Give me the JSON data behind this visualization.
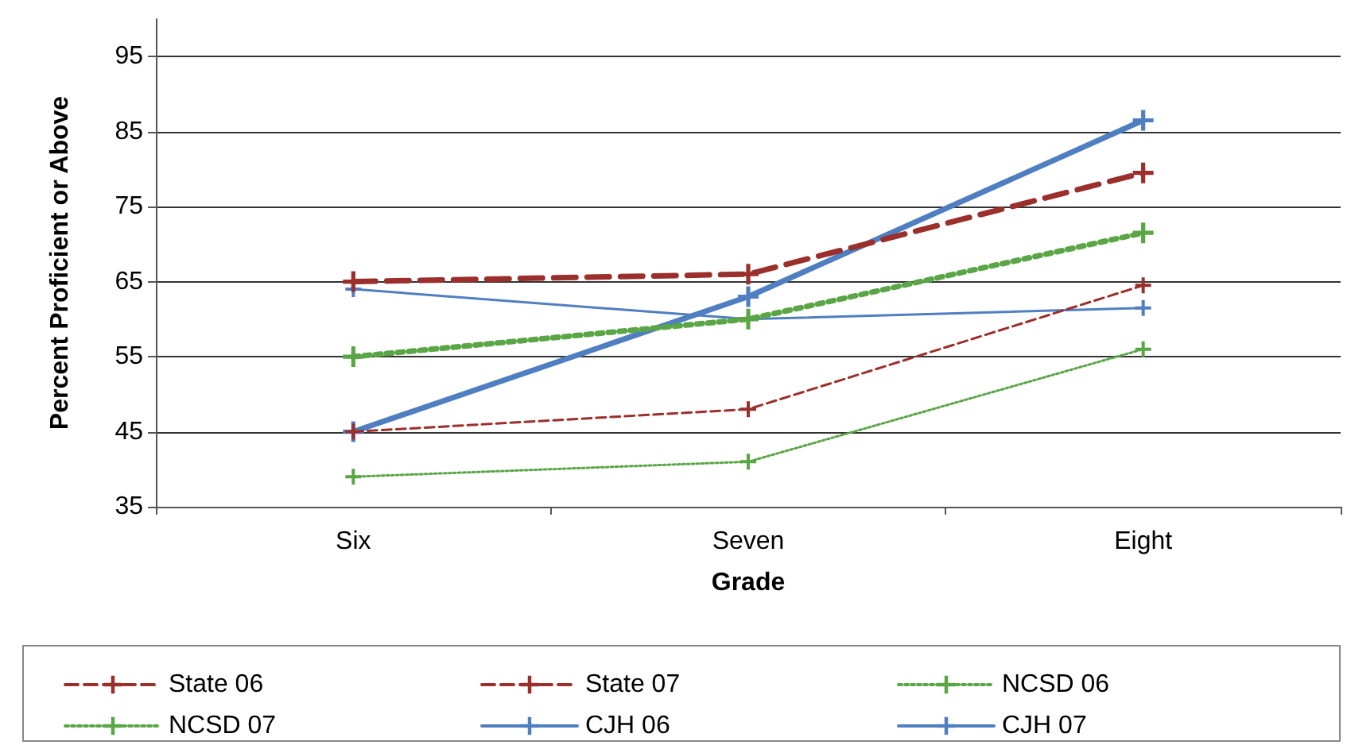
{
  "chart_data": {
    "type": "line",
    "xlabel": "Grade",
    "ylabel": "Percent Proficient or Above",
    "categories": [
      "Six",
      "Seven",
      "Eight"
    ],
    "series": [
      {
        "name": "State 06",
        "color": "#9b2f2c",
        "line_style": "dashed",
        "values": [
          45,
          48,
          64.5
        ]
      },
      {
        "name": "State 07",
        "color": "#9b2f2c",
        "line_style": "dashed",
        "values": [
          65,
          66,
          79.5
        ]
      },
      {
        "name": "NCSD 06",
        "color": "#5aa646",
        "line_style": "dotted",
        "values": [
          39,
          41,
          56
        ]
      },
      {
        "name": "NCSD 07",
        "color": "#5aa646",
        "line_style": "dotted",
        "values": [
          55,
          60,
          71.5
        ]
      },
      {
        "name": "CJH 06",
        "color": "#4f7fc1",
        "line_style": "solid",
        "values": [
          64,
          60,
          61.5
        ]
      },
      {
        "name": "CJH 07",
        "color": "#4f7fc1",
        "line_style": "solid",
        "values": [
          45,
          63,
          86.5
        ]
      }
    ],
    "ylim": [
      35,
      100
    ],
    "yticks": [
      35,
      45,
      55,
      65,
      75,
      85,
      95
    ],
    "grid": "y",
    "legend": "bottom",
    "marker": "cross"
  }
}
